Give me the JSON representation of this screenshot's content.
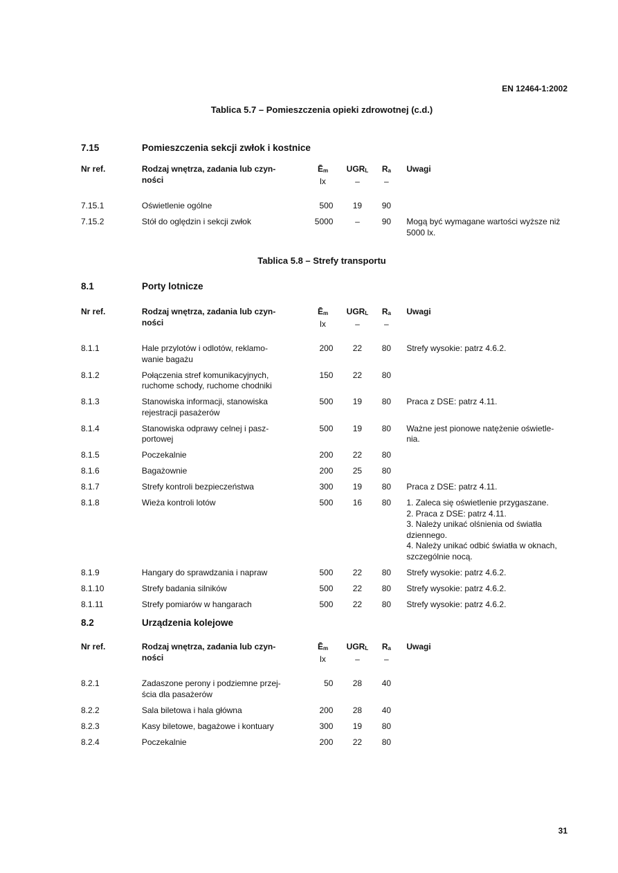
{
  "header": {
    "standard": "EN 12464-1:2002"
  },
  "columns": {
    "ref": "Nr ref.",
    "desc": "Rodzaj wnętrza, zadania lub czyn-\nności",
    "em": "Ē",
    "em_sub": "m",
    "em_unit": "lx",
    "ugr": "UGR",
    "ugr_sub": "L",
    "ugr_unit": "–",
    "ra": "R",
    "ra_sub": "a",
    "ra_unit": "–",
    "notes": "Uwagi"
  },
  "tables": [
    {
      "title": "Tablica 5.7 – Pomieszczenia opieki zdrowotnej (c.d.)",
      "sections": [
        {
          "num": "7.15",
          "name": "Pomieszczenia sekcji zwłok i kostnice",
          "rows": [
            {
              "ref": "7.15.1",
              "desc": "Oświetlenie ogólne",
              "em": "500",
              "ugr": "19",
              "ra": "90",
              "notes": ""
            },
            {
              "ref": "7.15.2",
              "desc": "Stół do oględzin i sekcji zwłok",
              "em": "5000",
              "ugr": "–",
              "ra": "90",
              "notes": "Mogą być wymagane wartości wyższe niż 5000 lx."
            }
          ]
        }
      ]
    },
    {
      "title": "Tablica 5.8 – Strefy transportu",
      "sections": [
        {
          "num": "8.1",
          "name": "Porty lotnicze",
          "rows": [
            {
              "ref": "8.1.1",
              "desc": "Hale przylotów i odlotów, reklamo-\nwanie bagażu",
              "em": "200",
              "ugr": "22",
              "ra": "80",
              "notes": "Strefy wysokie: patrz 4.6.2."
            },
            {
              "ref": "8.1.2",
              "desc": "Połączenia stref komunikacyjnych,\nruchome schody, ruchome chodniki",
              "em": "150",
              "ugr": "22",
              "ra": "80",
              "notes": ""
            },
            {
              "ref": "8.1.3",
              "desc": "Stanowiska informacji, stanowiska\nrejestracji pasażerów",
              "em": "500",
              "ugr": "19",
              "ra": "80",
              "notes": "Praca z DSE: patrz 4.11."
            },
            {
              "ref": "8.1.4",
              "desc": "Stanowiska odprawy celnej i pasz-\nportowej",
              "em": "500",
              "ugr": "19",
              "ra": "80",
              "notes": "Ważne jest pionowe natężenie oświetle-\nnia."
            },
            {
              "ref": "8.1.5",
              "desc": "Poczekalnie",
              "em": "200",
              "ugr": "22",
              "ra": "80",
              "notes": ""
            },
            {
              "ref": "8.1.6",
              "desc": "Bagażownie",
              "em": "200",
              "ugr": "25",
              "ra": "80",
              "notes": ""
            },
            {
              "ref": "8.1.7",
              "desc": "Strefy kontroli bezpieczeństwa",
              "em": "300",
              "ugr": "19",
              "ra": "80",
              "notes": "Praca z DSE: patrz 4.11."
            },
            {
              "ref": "8.1.8",
              "desc": "Wieża kontroli lotów",
              "em": "500",
              "ugr": "16",
              "ra": "80",
              "notes": "1. Zaleca się oświetlenie przygaszane.\n2. Praca z DSE: patrz 4.11.\n3. Należy unikać olśnienia od światła\ndziennego.\n4. Należy unikać odbić światła w oknach,\nszczególnie nocą."
            },
            {
              "ref": "8.1.9",
              "desc": "Hangary do sprawdzania i napraw",
              "em": "500",
              "ugr": "22",
              "ra": "80",
              "notes": "Strefy wysokie: patrz 4.6.2."
            },
            {
              "ref": "8.1.10",
              "desc": "Strefy badania silników",
              "em": "500",
              "ugr": "22",
              "ra": "80",
              "notes": "Strefy wysokie: patrz 4.6.2."
            },
            {
              "ref": "8.1.11",
              "desc": "Strefy pomiarów w hangarach",
              "em": "500",
              "ugr": "22",
              "ra": "80",
              "notes": "Strefy wysokie: patrz 4.6.2."
            }
          ]
        },
        {
          "num": "8.2",
          "name": "Urządzenia kolejowe",
          "rows": [
            {
              "ref": "8.2.1",
              "desc": "Zadaszone perony i podziemne przej-\nścia dla pasażerów",
              "em": "50",
              "ugr": "28",
              "ra": "40",
              "notes": ""
            },
            {
              "ref": "8.2.2",
              "desc": "Sala biletowa i hala główna",
              "em": "200",
              "ugr": "28",
              "ra": "40",
              "notes": ""
            },
            {
              "ref": "8.2.3",
              "desc": "Kasy biletowe, bagażowe i kontuary",
              "em": "300",
              "ugr": "19",
              "ra": "80",
              "notes": ""
            },
            {
              "ref": "8.2.4",
              "desc": "Poczekalnie",
              "em": "200",
              "ugr": "22",
              "ra": "80",
              "notes": ""
            }
          ]
        }
      ]
    }
  ],
  "footer": {
    "page_number": "31"
  }
}
